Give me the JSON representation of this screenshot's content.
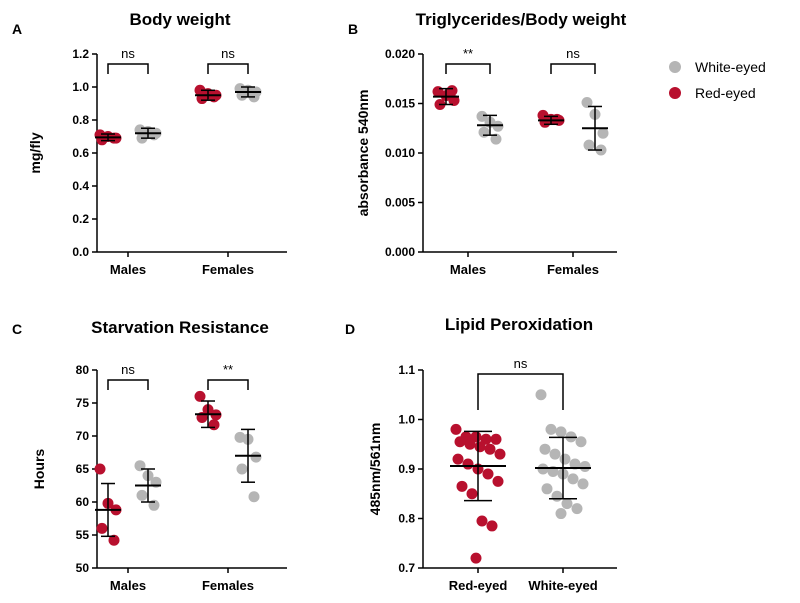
{
  "colors": {
    "red": "#b8102e",
    "gray": "#b5b5b5",
    "axis": "#000000"
  },
  "legend": [
    {
      "label": "White-eyed",
      "color": "#b5b5b5"
    },
    {
      "label": "Red-eyed",
      "color": "#b8102e"
    }
  ],
  "chart_data": [
    {
      "panel": "A",
      "type": "scatter",
      "title": "Body weight",
      "ylabel": "mg/fly",
      "ylim": [
        0,
        1.2
      ],
      "yticks": [
        "0.0",
        "0.2",
        "0.4",
        "0.6",
        "0.8",
        "1.0",
        "1.2"
      ],
      "categories": [
        "Males",
        "Females"
      ],
      "comparisons": [
        "ns",
        "ns"
      ],
      "groups": [
        {
          "category": "Males",
          "series": "Red-eyed",
          "mean": 0.695,
          "sd": 0.02,
          "points": [
            0.71,
            0.7,
            0.69,
            0.68,
            0.69
          ]
        },
        {
          "category": "Males",
          "series": "White-eyed",
          "mean": 0.72,
          "sd": 0.03,
          "points": [
            0.74,
            0.73,
            0.72,
            0.69,
            0.71
          ]
        },
        {
          "category": "Females",
          "series": "Red-eyed",
          "mean": 0.95,
          "sd": 0.03,
          "points": [
            0.98,
            0.96,
            0.95,
            0.93,
            0.94
          ]
        },
        {
          "category": "Females",
          "series": "White-eyed",
          "mean": 0.97,
          "sd": 0.03,
          "points": [
            0.99,
            0.98,
            0.97,
            0.95,
            0.94
          ]
        }
      ]
    },
    {
      "panel": "B",
      "type": "scatter",
      "title": "Triglycerides/Body weight",
      "ylabel": "absorbance 540nm",
      "ylim": [
        0,
        0.02
      ],
      "yticks": [
        "0.000",
        "0.005",
        "0.010",
        "0.015",
        "0.020"
      ],
      "categories": [
        "Males",
        "Females"
      ],
      "comparisons": [
        "**",
        "ns"
      ],
      "groups": [
        {
          "category": "Males",
          "series": "Red-eyed",
          "mean": 0.0157,
          "sd": 0.0008,
          "points": [
            0.0162,
            0.0158,
            0.0153,
            0.0149,
            0.0163
          ]
        },
        {
          "category": "Males",
          "series": "White-eyed",
          "mean": 0.0128,
          "sd": 0.001,
          "points": [
            0.0137,
            0.0131,
            0.0127,
            0.0121,
            0.0114
          ]
        },
        {
          "category": "Females",
          "series": "Red-eyed",
          "mean": 0.0133,
          "sd": 0.0004,
          "points": [
            0.0138,
            0.0134,
            0.0133,
            0.0131,
            0.0134
          ]
        },
        {
          "category": "Females",
          "series": "White-eyed",
          "mean": 0.0125,
          "sd": 0.0022,
          "points": [
            0.0151,
            0.0139,
            0.012,
            0.0108,
            0.0103
          ]
        }
      ]
    },
    {
      "panel": "C",
      "type": "scatter",
      "title": "Starvation Resistance",
      "ylabel": "Hours",
      "ylim": [
        50,
        80
      ],
      "yticks": [
        "50",
        "55",
        "60",
        "65",
        "70",
        "75",
        "80"
      ],
      "categories": [
        "Males",
        "Females"
      ],
      "comparisons": [
        "ns",
        "**"
      ],
      "groups": [
        {
          "category": "Males",
          "series": "Red-eyed",
          "mean": 58.8,
          "sd": 4.0,
          "points": [
            65.0,
            59.8,
            58.8,
            56.0,
            54.2
          ]
        },
        {
          "category": "Males",
          "series": "White-eyed",
          "mean": 62.5,
          "sd": 2.5,
          "points": [
            65.5,
            64.0,
            63.0,
            61.0,
            59.5
          ]
        },
        {
          "category": "Females",
          "series": "Red-eyed",
          "mean": 73.3,
          "sd": 2.0,
          "points": [
            76.0,
            74.0,
            73.2,
            72.8,
            71.7
          ]
        },
        {
          "category": "Females",
          "series": "White-eyed",
          "mean": 67.0,
          "sd": 4.0,
          "points": [
            69.8,
            69.5,
            66.8,
            65.0,
            60.8
          ]
        }
      ]
    },
    {
      "panel": "D",
      "type": "scatter",
      "title": "Lipid Peroxidation",
      "ylabel": "485nm/561nm",
      "ylim": [
        0.7,
        1.1
      ],
      "yticks": [
        "0.7",
        "0.8",
        "0.9",
        "1.0",
        "1.1"
      ],
      "categories": [
        "Red-eyed",
        "White-eyed"
      ],
      "comparisons": [
        "ns"
      ],
      "groups": [
        {
          "category": "Red-eyed",
          "series": "Red-eyed",
          "mean": 0.906,
          "sd": 0.07,
          "points": [
            0.98,
            0.965,
            0.965,
            0.96,
            0.96,
            0.955,
            0.95,
            0.945,
            0.94,
            0.93,
            0.92,
            0.91,
            0.9,
            0.89,
            0.875,
            0.865,
            0.85,
            0.795,
            0.785,
            0.72
          ]
        },
        {
          "category": "White-eyed",
          "series": "White-eyed",
          "mean": 0.902,
          "sd": 0.062,
          "points": [
            1.05,
            0.98,
            0.975,
            0.965,
            0.955,
            0.94,
            0.93,
            0.92,
            0.91,
            0.905,
            0.9,
            0.895,
            0.89,
            0.88,
            0.87,
            0.86,
            0.845,
            0.83,
            0.82,
            0.81
          ]
        }
      ]
    }
  ]
}
